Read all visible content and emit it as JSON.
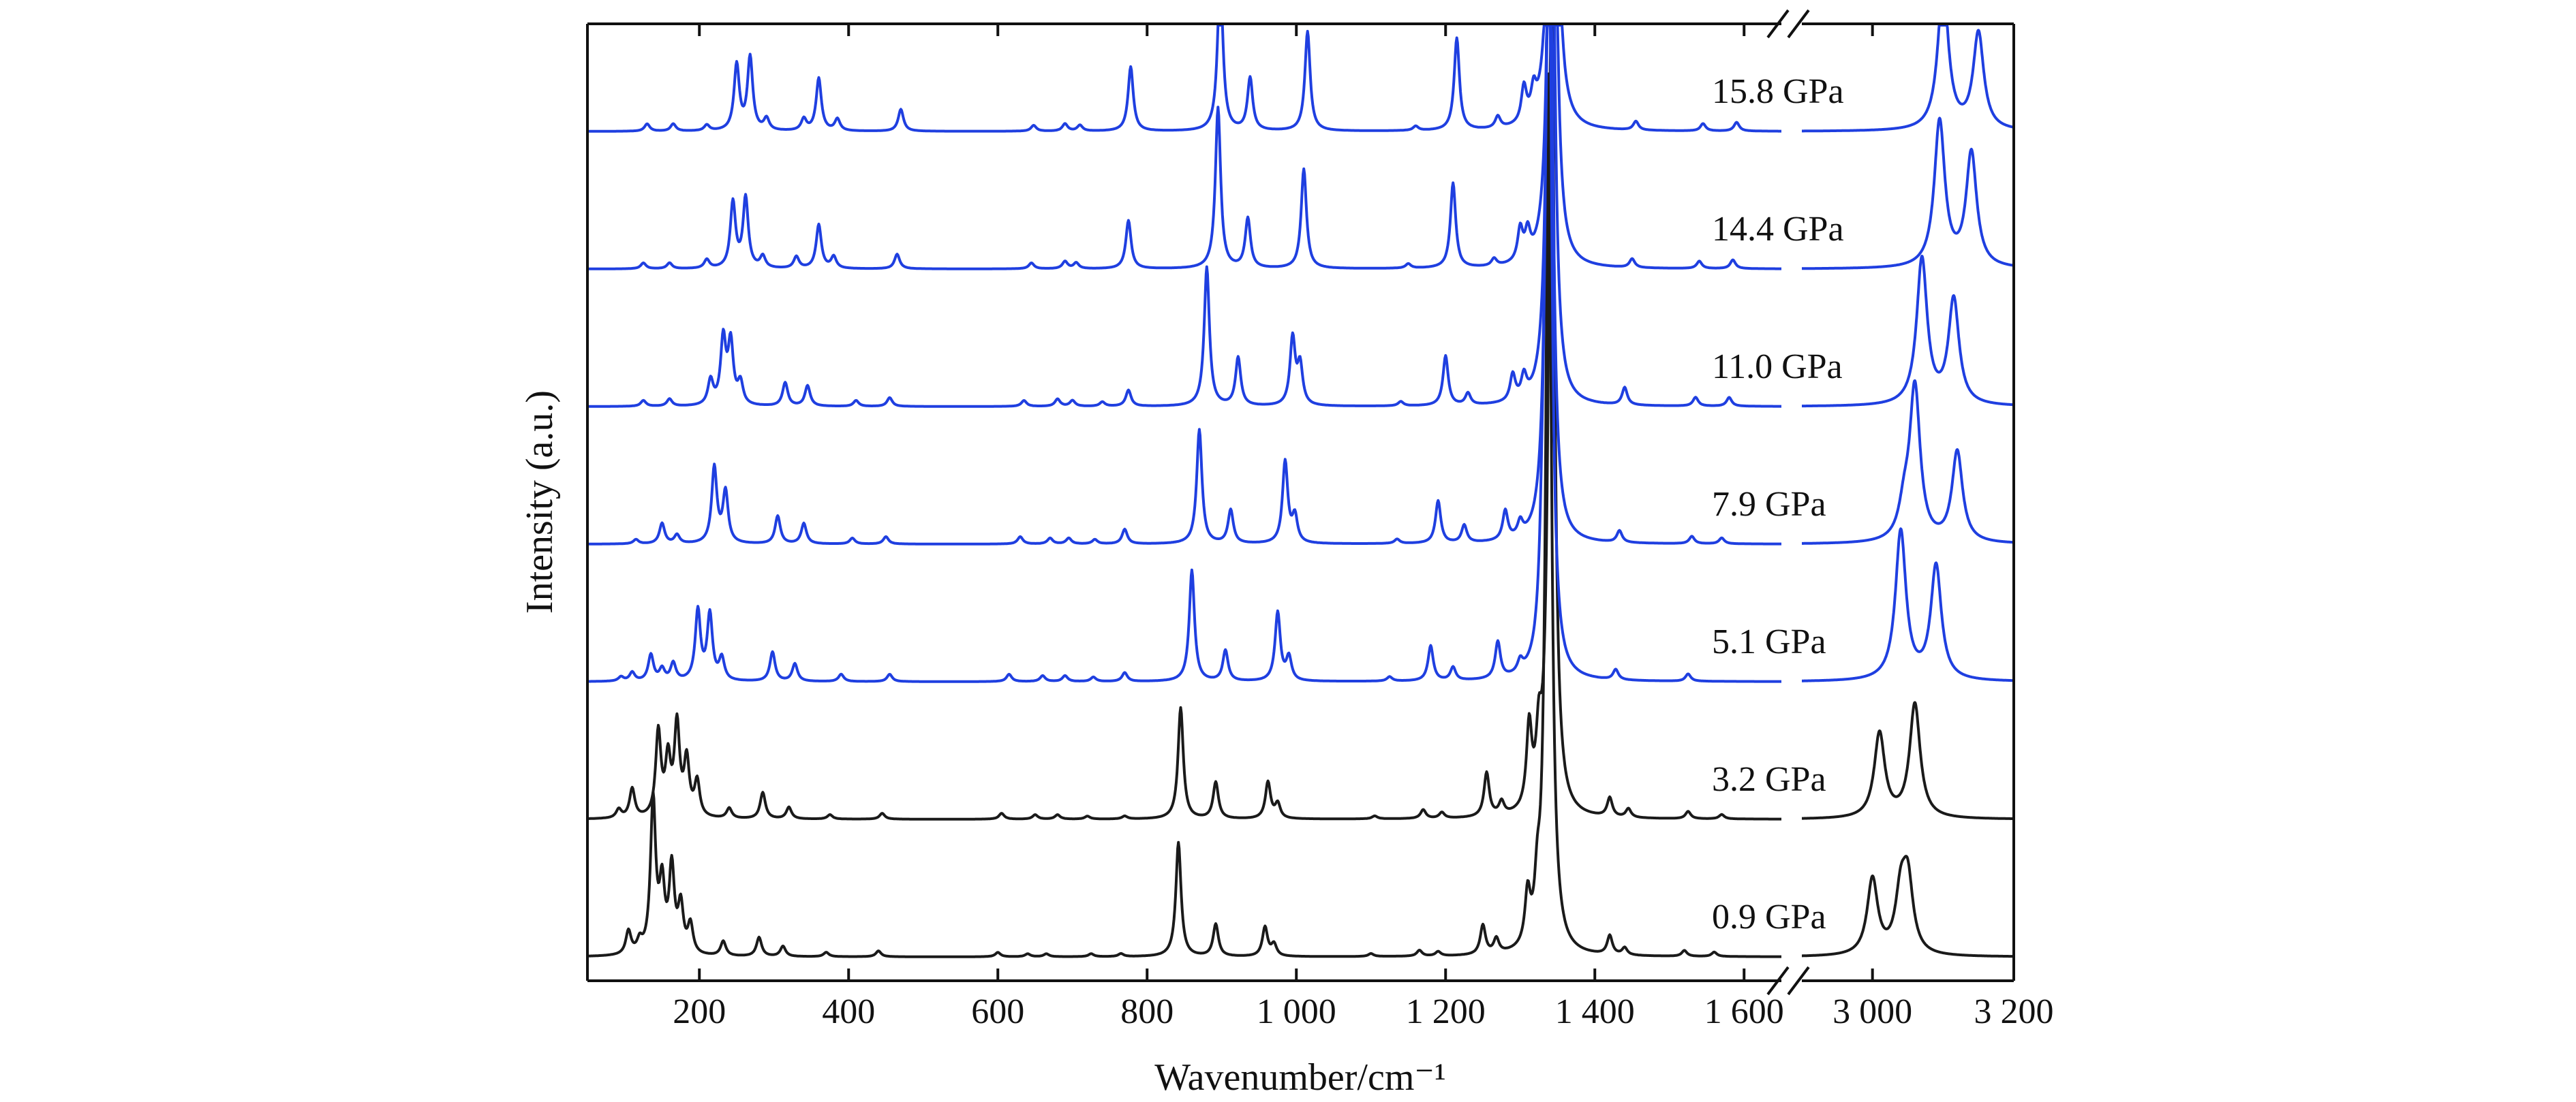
{
  "chart_data": {
    "type": "line",
    "xlabel": "Wavenumber/cm⁻¹",
    "ylabel": "Intensity (a.u.)",
    "axis_break": {
      "from": 1650,
      "to": 2900
    },
    "xlim_left": [
      50,
      1650
    ],
    "xlim_right": [
      2900,
      3200
    ],
    "x_ticks_left": [
      200,
      400,
      600,
      800,
      1000,
      1200,
      1400,
      1600
    ],
    "x_ticks_right": [
      3000,
      3200
    ],
    "x_tick_labels_left": [
      "200",
      "400",
      "600",
      "800",
      "1 000",
      "1 200",
      "1 400",
      "1 600"
    ],
    "x_tick_labels_right": [
      "3 000",
      "3 200"
    ],
    "grid": false,
    "colors": {
      "low_pressure": "#1a1a1a",
      "high_pressure": "#1f3fe0"
    },
    "series": [
      {
        "name": "0.9 GPa",
        "offset": 0.0,
        "color": "#1a1a1a",
        "peaks": [
          [
            105,
            0.16
          ],
          [
            120,
            0.08
          ],
          [
            138,
            1.05
          ],
          [
            150,
            0.45
          ],
          [
            163,
            0.58
          ],
          [
            175,
            0.32
          ],
          [
            188,
            0.2
          ],
          [
            232,
            0.1
          ],
          [
            280,
            0.13
          ],
          [
            312,
            0.07
          ],
          [
            370,
            0.03
          ],
          [
            440,
            0.04
          ],
          [
            600,
            0.03
          ],
          [
            640,
            0.02
          ],
          [
            665,
            0.02
          ],
          [
            725,
            0.02
          ],
          [
            765,
            0.02
          ],
          [
            842,
            0.78
          ],
          [
            892,
            0.22
          ],
          [
            958,
            0.2
          ],
          [
            970,
            0.08
          ],
          [
            1100,
            0.02
          ],
          [
            1165,
            0.04
          ],
          [
            1190,
            0.03
          ],
          [
            1250,
            0.2
          ],
          [
            1268,
            0.1
          ],
          [
            1310,
            0.34
          ],
          [
            1323,
            0.3
          ],
          [
            1338,
            6.0
          ],
          [
            1420,
            0.13
          ],
          [
            1440,
            0.05
          ],
          [
            1520,
            0.04
          ],
          [
            1560,
            0.03
          ],
          [
            3000,
            0.52
          ],
          [
            3040,
            0.38
          ],
          [
            3050,
            0.48
          ]
        ]
      },
      {
        "name": "3.2 GPa",
        "offset": 1.0,
        "color": "#1a1a1a",
        "peaks": [
          [
            92,
            0.06
          ],
          [
            110,
            0.2
          ],
          [
            145,
            0.58
          ],
          [
            158,
            0.38
          ],
          [
            170,
            0.62
          ],
          [
            183,
            0.38
          ],
          [
            197,
            0.24
          ],
          [
            240,
            0.07
          ],
          [
            285,
            0.18
          ],
          [
            320,
            0.08
          ],
          [
            375,
            0.03
          ],
          [
            445,
            0.04
          ],
          [
            605,
            0.04
          ],
          [
            650,
            0.03
          ],
          [
            680,
            0.03
          ],
          [
            720,
            0.02
          ],
          [
            770,
            0.02
          ],
          [
            845,
            0.76
          ],
          [
            892,
            0.25
          ],
          [
            962,
            0.25
          ],
          [
            975,
            0.1
          ],
          [
            1105,
            0.02
          ],
          [
            1170,
            0.06
          ],
          [
            1195,
            0.04
          ],
          [
            1255,
            0.3
          ],
          [
            1275,
            0.09
          ],
          [
            1312,
            0.55
          ],
          [
            1325,
            0.4
          ],
          [
            1342,
            6.0
          ],
          [
            1420,
            0.13
          ],
          [
            1445,
            0.06
          ],
          [
            1525,
            0.05
          ],
          [
            1570,
            0.03
          ],
          [
            3010,
            0.58
          ],
          [
            3060,
            0.78
          ]
        ]
      },
      {
        "name": "5.1 GPa",
        "offset": 2.0,
        "color": "#1f3fe0",
        "peaks": [
          [
            95,
            0.03
          ],
          [
            110,
            0.06
          ],
          [
            135,
            0.18
          ],
          [
            150,
            0.08
          ],
          [
            165,
            0.12
          ],
          [
            198,
            0.48
          ],
          [
            214,
            0.45
          ],
          [
            230,
            0.15
          ],
          [
            298,
            0.2
          ],
          [
            328,
            0.12
          ],
          [
            390,
            0.05
          ],
          [
            455,
            0.05
          ],
          [
            615,
            0.05
          ],
          [
            660,
            0.04
          ],
          [
            690,
            0.04
          ],
          [
            728,
            0.03
          ],
          [
            770,
            0.06
          ],
          [
            860,
            0.76
          ],
          [
            905,
            0.21
          ],
          [
            975,
            0.47
          ],
          [
            990,
            0.16
          ],
          [
            1125,
            0.03
          ],
          [
            1180,
            0.24
          ],
          [
            1210,
            0.09
          ],
          [
            1270,
            0.25
          ],
          [
            1300,
            0.08
          ],
          [
            1330,
            0.5
          ],
          [
            1338,
            6.0
          ],
          [
            1428,
            0.07
          ],
          [
            1525,
            0.05
          ],
          [
            3040,
            1.02
          ],
          [
            3090,
            0.78
          ]
        ]
      },
      {
        "name": "7.9 GPa",
        "offset": 3.0,
        "color": "#1f3fe0",
        "peaks": [
          [
            115,
            0.03
          ],
          [
            150,
            0.14
          ],
          [
            170,
            0.06
          ],
          [
            220,
            0.52
          ],
          [
            235,
            0.35
          ],
          [
            305,
            0.19
          ],
          [
            340,
            0.14
          ],
          [
            405,
            0.04
          ],
          [
            450,
            0.05
          ],
          [
            630,
            0.05
          ],
          [
            670,
            0.04
          ],
          [
            695,
            0.04
          ],
          [
            730,
            0.03
          ],
          [
            770,
            0.1
          ],
          [
            870,
            0.78
          ],
          [
            912,
            0.23
          ],
          [
            985,
            0.56
          ],
          [
            998,
            0.18
          ],
          [
            1135,
            0.03
          ],
          [
            1190,
            0.29
          ],
          [
            1225,
            0.12
          ],
          [
            1280,
            0.2
          ],
          [
            1300,
            0.1
          ],
          [
            1339,
            6.0
          ],
          [
            1433,
            0.08
          ],
          [
            1530,
            0.05
          ],
          [
            1570,
            0.04
          ],
          [
            3045,
            0.2
          ],
          [
            3060,
            1.05
          ],
          [
            3120,
            0.62
          ]
        ]
      },
      {
        "name": "11.0 GPa",
        "offset": 4.0,
        "color": "#1f3fe0",
        "peaks": [
          [
            125,
            0.04
          ],
          [
            160,
            0.05
          ],
          [
            215,
            0.17
          ],
          [
            232,
            0.45
          ],
          [
            242,
            0.42
          ],
          [
            255,
            0.15
          ],
          [
            315,
            0.16
          ],
          [
            345,
            0.14
          ],
          [
            410,
            0.04
          ],
          [
            455,
            0.06
          ],
          [
            635,
            0.04
          ],
          [
            680,
            0.05
          ],
          [
            700,
            0.04
          ],
          [
            740,
            0.03
          ],
          [
            775,
            0.11
          ],
          [
            880,
            0.95
          ],
          [
            922,
            0.33
          ],
          [
            995,
            0.46
          ],
          [
            1005,
            0.27
          ],
          [
            1140,
            0.03
          ],
          [
            1200,
            0.34
          ],
          [
            1230,
            0.08
          ],
          [
            1290,
            0.18
          ],
          [
            1305,
            0.15
          ],
          [
            1341,
            6.0
          ],
          [
            1440,
            0.12
          ],
          [
            1535,
            0.06
          ],
          [
            1580,
            0.06
          ],
          [
            3070,
            1.0
          ],
          [
            3115,
            0.72
          ]
        ]
      },
      {
        "name": "14.4 GPa",
        "offset": 5.0,
        "color": "#1f3fe0",
        "peaks": [
          [
            125,
            0.04
          ],
          [
            160,
            0.04
          ],
          [
            210,
            0.06
          ],
          [
            245,
            0.45
          ],
          [
            262,
            0.48
          ],
          [
            285,
            0.08
          ],
          [
            330,
            0.08
          ],
          [
            360,
            0.3
          ],
          [
            380,
            0.08
          ],
          [
            465,
            0.1
          ],
          [
            645,
            0.04
          ],
          [
            690,
            0.05
          ],
          [
            705,
            0.04
          ],
          [
            775,
            0.33
          ],
          [
            895,
            1.1
          ],
          [
            935,
            0.34
          ],
          [
            1010,
            0.68
          ],
          [
            1150,
            0.03
          ],
          [
            1210,
            0.58
          ],
          [
            1265,
            0.05
          ],
          [
            1300,
            0.22
          ],
          [
            1310,
            0.18
          ],
          [
            1343,
            6.0
          ],
          [
            1450,
            0.06
          ],
          [
            1540,
            0.05
          ],
          [
            1585,
            0.06
          ],
          [
            3095,
            1.0
          ],
          [
            3140,
            0.78
          ]
        ]
      },
      {
        "name": "15.8 GPa",
        "offset": 6.0,
        "color": "#1f3fe0",
        "peaks": [
          [
            130,
            0.05
          ],
          [
            165,
            0.05
          ],
          [
            210,
            0.04
          ],
          [
            250,
            0.45
          ],
          [
            268,
            0.5
          ],
          [
            290,
            0.08
          ],
          [
            340,
            0.08
          ],
          [
            360,
            0.36
          ],
          [
            385,
            0.08
          ],
          [
            470,
            0.15
          ],
          [
            648,
            0.04
          ],
          [
            690,
            0.05
          ],
          [
            710,
            0.04
          ],
          [
            778,
            0.44
          ],
          [
            898,
            1.1
          ],
          [
            938,
            0.36
          ],
          [
            1015,
            0.68
          ],
          [
            1160,
            0.03
          ],
          [
            1215,
            0.63
          ],
          [
            1270,
            0.08
          ],
          [
            1305,
            0.24
          ],
          [
            1318,
            0.18
          ],
          [
            1344,
            6.0
          ],
          [
            1455,
            0.06
          ],
          [
            1545,
            0.05
          ],
          [
            1590,
            0.06
          ],
          [
            3100,
            0.99
          ],
          [
            3150,
            0.66
          ]
        ]
      }
    ]
  }
}
